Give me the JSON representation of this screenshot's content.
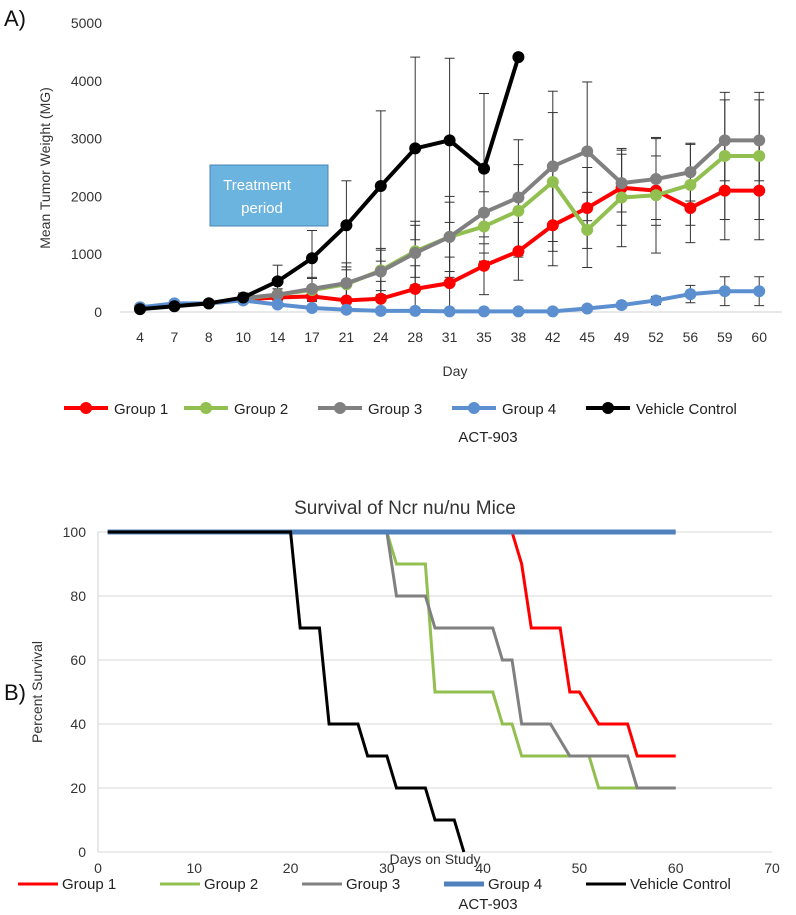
{
  "chart_data": [
    {
      "panel_label": "A)",
      "type": "line",
      "title": "",
      "xlabel": "Day",
      "ylabel": "Mean Tumor Weight (MG)",
      "ylim": [
        0,
        5000
      ],
      "yticks": [
        0,
        1000,
        2000,
        3000,
        4000,
        5000
      ],
      "categories": [
        "4",
        "7",
        "8",
        "10",
        "14",
        "17",
        "21",
        "24",
        "28",
        "31",
        "35",
        "38",
        "42",
        "45",
        "49",
        "52",
        "56",
        "59",
        "60"
      ],
      "annotation": {
        "line1": "Treatment",
        "line2": "period",
        "color": "#6cb4e0"
      },
      "legend_position": "bottom",
      "legend_caption": "ACT-903",
      "series": [
        {
          "name": "Group 1",
          "color": "#ff0000",
          "values": [
            60,
            120,
            150,
            220,
            250,
            270,
            200,
            230,
            400,
            500,
            800,
            1050,
            1500,
            1800,
            2150,
            2100,
            1800,
            2100,
            2100
          ],
          "error": [
            0,
            0,
            0,
            60,
            100,
            150,
            250,
            300,
            400,
            450,
            500,
            500,
            700,
            700,
            650,
            600,
            600,
            850,
            850
          ]
        },
        {
          "name": "Group 2",
          "color": "#92c050",
          "values": [
            80,
            130,
            150,
            230,
            300,
            380,
            480,
            720,
            1050,
            1300,
            1480,
            1750,
            2250,
            1420,
            1980,
            2020,
            2200,
            2700,
            2700
          ],
          "error": [
            0,
            0,
            0,
            60,
            100,
            200,
            300,
            350,
            450,
            600,
            600,
            800,
            1200,
            650,
            850,
            1000,
            700,
            1100,
            1100
          ]
        },
        {
          "name": "Group 3",
          "color": "#808080",
          "values": [
            80,
            130,
            150,
            240,
            300,
            400,
            500,
            700,
            1020,
            1300,
            1720,
            1980,
            2520,
            2780,
            2230,
            2300,
            2420,
            2970,
            2970
          ],
          "error": [
            0,
            0,
            0,
            60,
            100,
            200,
            350,
            400,
            550,
            700,
            700,
            1000,
            1300,
            1200,
            500,
            700,
            500,
            700,
            700
          ]
        },
        {
          "name": "Group 4",
          "color": "#5b8fd0",
          "values": [
            80,
            150,
            150,
            200,
            130,
            70,
            40,
            20,
            20,
            10,
            10,
            10,
            10,
            60,
            120,
            200,
            310,
            360,
            360
          ],
          "error": [
            0,
            0,
            0,
            50,
            30,
            30,
            20,
            10,
            10,
            10,
            10,
            10,
            10,
            20,
            40,
            70,
            150,
            250,
            250
          ]
        },
        {
          "name": "Vehicle Control",
          "color": "#000000",
          "values": [
            50,
            100,
            150,
            250,
            530,
            930,
            1500,
            2180,
            2830,
            2970,
            2480,
            4410,
            null,
            null,
            null,
            null,
            null,
            null,
            null
          ],
          "error": [
            0,
            0,
            0,
            80,
            280,
            480,
            770,
            1300,
            1580,
            1420,
            1300,
            0,
            0,
            0,
            0,
            0,
            0,
            0,
            0
          ]
        }
      ]
    },
    {
      "panel_label": "B)",
      "type": "line",
      "title": "Survival of Ncr nu/nu Mice",
      "xlabel": "Days on Study",
      "ylabel": "Percent Survival",
      "xlim": [
        0,
        70
      ],
      "ylim": [
        0,
        100
      ],
      "xticks": [
        0,
        10,
        20,
        30,
        40,
        50,
        60,
        70
      ],
      "yticks": [
        0,
        20,
        40,
        60,
        80,
        100
      ],
      "grid": true,
      "legend_position": "bottom",
      "legend_caption": "ACT-903",
      "series": [
        {
          "name": "Group 1",
          "color": "#ff0000",
          "points": [
            [
              43,
              100
            ],
            [
              44,
              90
            ],
            [
              45,
              70
            ],
            [
              48,
              70
            ],
            [
              49,
              50
            ],
            [
              50,
              50
            ],
            [
              52,
              40
            ],
            [
              55,
              40
            ],
            [
              56,
              30
            ],
            [
              60,
              30
            ]
          ]
        },
        {
          "name": "Group 2",
          "color": "#92c050",
          "points": [
            [
              30,
              100
            ],
            [
              31,
              90
            ],
            [
              34,
              90
            ],
            [
              35,
              50
            ],
            [
              41,
              50
            ],
            [
              42,
              40
            ],
            [
              43,
              40
            ],
            [
              44,
              30
            ],
            [
              51,
              30
            ],
            [
              52,
              20
            ],
            [
              60,
              20
            ]
          ]
        },
        {
          "name": "Group 3",
          "color": "#808080",
          "points": [
            [
              30,
              100
            ],
            [
              31,
              80
            ],
            [
              34,
              80
            ],
            [
              35,
              70
            ],
            [
              41,
              70
            ],
            [
              42,
              60
            ],
            [
              43,
              60
            ],
            [
              44,
              40
            ],
            [
              47,
              40
            ],
            [
              49,
              30
            ],
            [
              55,
              30
            ],
            [
              56,
              20
            ],
            [
              60,
              20
            ]
          ]
        },
        {
          "name": "Group 4",
          "color": "#4f81bd",
          "points": [
            [
              1,
              100
            ],
            [
              60,
              100
            ]
          ]
        },
        {
          "name": "Vehicle Control",
          "color": "#000000",
          "points": [
            [
              1,
              100
            ],
            [
              20,
              100
            ],
            [
              21,
              70
            ],
            [
              23,
              70
            ],
            [
              24,
              40
            ],
            [
              27,
              40
            ],
            [
              28,
              30
            ],
            [
              30,
              30
            ],
            [
              31,
              20
            ],
            [
              34,
              20
            ],
            [
              35,
              10
            ],
            [
              37,
              10
            ],
            [
              38,
              0
            ]
          ]
        }
      ]
    }
  ]
}
